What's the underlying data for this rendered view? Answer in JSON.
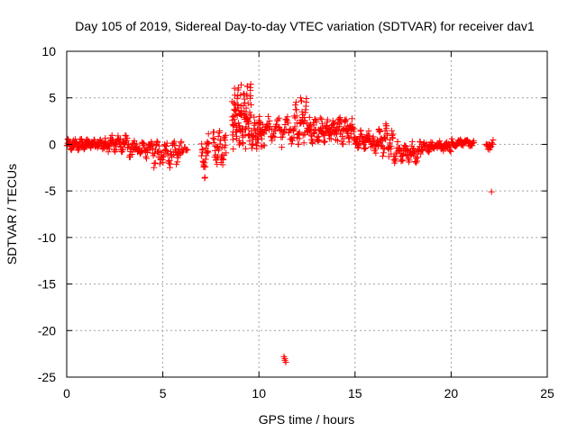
{
  "chart_data": {
    "type": "scatter",
    "title": "Day 105 of 2019, Sidereal Day-to-day VTEC variation (SDTVAR) for receiver dav1",
    "xlabel": "GPS time / hours",
    "ylabel": "SDTVAR / TECUs",
    "xlim": [
      0,
      25
    ],
    "ylim": [
      -25,
      10
    ],
    "xticks": [
      "0",
      "5",
      "10",
      "15",
      "20",
      "25"
    ],
    "yticks": [
      "10",
      "5",
      "0",
      "-5",
      "-10",
      "-15",
      "-20",
      "-25"
    ],
    "grid": true,
    "marker": "plus",
    "color": "#ff0000",
    "series": [
      {
        "name": "SDTVAR",
        "segments": [
          {
            "x0": 0.0,
            "x1": 2.0,
            "ymin": -0.6,
            "ymax": 0.6,
            "n": 110
          },
          {
            "x0": 2.0,
            "x1": 3.2,
            "ymin": -0.8,
            "ymax": 1.0,
            "n": 60
          },
          {
            "x0": 3.2,
            "x1": 4.5,
            "ymin": -1.5,
            "ymax": 0.5,
            "n": 55
          },
          {
            "x0": 4.5,
            "x1": 6.0,
            "ymin": -2.5,
            "ymax": 0.5,
            "n": 65
          },
          {
            "x0": 6.0,
            "x1": 6.3,
            "ymin": -1.0,
            "ymax": -0.3,
            "n": 8
          },
          {
            "x0": 7.0,
            "x1": 7.4,
            "ymin": -4.0,
            "ymax": 1.5,
            "n": 25
          },
          {
            "x0": 7.6,
            "x1": 8.3,
            "ymin": -2.5,
            "ymax": 1.5,
            "n": 40
          },
          {
            "x0": 8.6,
            "x1": 9.6,
            "ymin": -0.5,
            "ymax": 6.5,
            "n": 110
          },
          {
            "x0": 9.6,
            "x1": 10.2,
            "ymin": -0.5,
            "ymax": 3.0,
            "n": 45
          },
          {
            "x0": 10.2,
            "x1": 11.8,
            "ymin": -0.3,
            "ymax": 3.0,
            "n": 60
          },
          {
            "x0": 11.8,
            "x1": 12.5,
            "ymin": 0.0,
            "ymax": 5.0,
            "n": 45
          },
          {
            "x0": 12.5,
            "x1": 15.0,
            "ymin": 0.0,
            "ymax": 3.0,
            "n": 140
          },
          {
            "x0": 15.0,
            "x1": 16.0,
            "ymin": -0.5,
            "ymax": 1.5,
            "n": 50
          },
          {
            "x0": 16.0,
            "x1": 17.0,
            "ymin": -1.5,
            "ymax": 2.0,
            "n": 50
          },
          {
            "x0": 17.0,
            "x1": 18.5,
            "ymin": -2.0,
            "ymax": 0.3,
            "n": 70
          },
          {
            "x0": 18.5,
            "x1": 20.0,
            "ymin": -0.8,
            "ymax": 0.4,
            "n": 70
          },
          {
            "x0": 20.0,
            "x1": 21.2,
            "ymin": -0.3,
            "ymax": 0.6,
            "n": 55
          },
          {
            "x0": 21.8,
            "x1": 22.2,
            "ymin": -0.6,
            "ymax": 0.6,
            "n": 15
          }
        ],
        "points": [
          [
            11.3,
            -22.8
          ],
          [
            11.35,
            -23.0
          ],
          [
            11.4,
            -23.4
          ],
          [
            11.35,
            -23.2
          ],
          [
            22.1,
            -5.1
          ],
          [
            16.6,
            2.2
          ]
        ]
      }
    ]
  }
}
